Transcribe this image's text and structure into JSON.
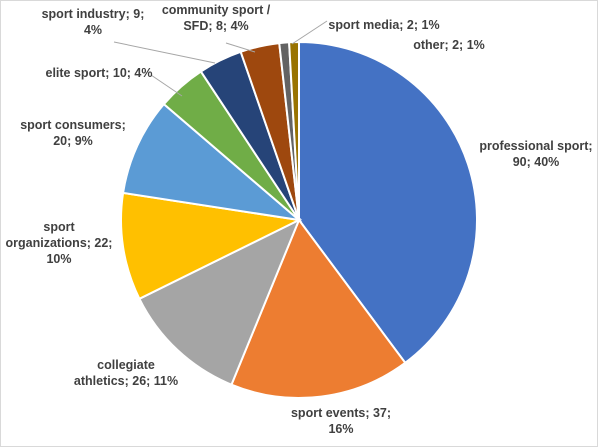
{
  "chart_data": {
    "type": "pie",
    "title": "",
    "start_angle_deg": 90,
    "direction": "clockwise",
    "slices": [
      {
        "label": "professional sport",
        "value": 90,
        "percent": "40%",
        "color": "#4472C4",
        "text_lines": [
          "professional sport;",
          "90; 40%"
        ]
      },
      {
        "label": "sport events",
        "value": 37,
        "percent": "16%",
        "color": "#ED7D31",
        "text_lines": [
          "sport events; 37;",
          "16%"
        ]
      },
      {
        "label": "collegiate athletics",
        "value": 26,
        "percent": "11%",
        "color": "#A5A5A5",
        "text_lines": [
          "collegiate",
          "athletics; 26; 11%"
        ]
      },
      {
        "label": "sport organizations",
        "value": 22,
        "percent": "10%",
        "color": "#FFC000",
        "text_lines": [
          "sport",
          "organizations; 22;",
          "10%"
        ]
      },
      {
        "label": "sport consumers",
        "value": 20,
        "percent": "9%",
        "color": "#5B9BD5",
        "text_lines": [
          "sport consumers;",
          "20; 9%"
        ]
      },
      {
        "label": "elite sport",
        "value": 10,
        "percent": "4%",
        "color": "#70AD47",
        "text_lines": [
          "elite sport; 10; 4%"
        ]
      },
      {
        "label": "sport industry",
        "value": 9,
        "percent": "4%",
        "color": "#264478",
        "text_lines": [
          "sport industry; 9;",
          "4%"
        ]
      },
      {
        "label": "community sport / SFD",
        "value": 8,
        "percent": "4%",
        "color": "#9E480E",
        "text_lines": [
          "community sport /",
          "SFD; 8; 4%"
        ]
      },
      {
        "label": "sport media",
        "value": 2,
        "percent": "1%",
        "color": "#636363",
        "text_lines": [
          "sport media; 2; 1%"
        ]
      },
      {
        "label": "other",
        "value": 2,
        "percent": "1%",
        "color": "#997300",
        "text_lines": [
          "other; 2; 1%"
        ]
      }
    ]
  }
}
